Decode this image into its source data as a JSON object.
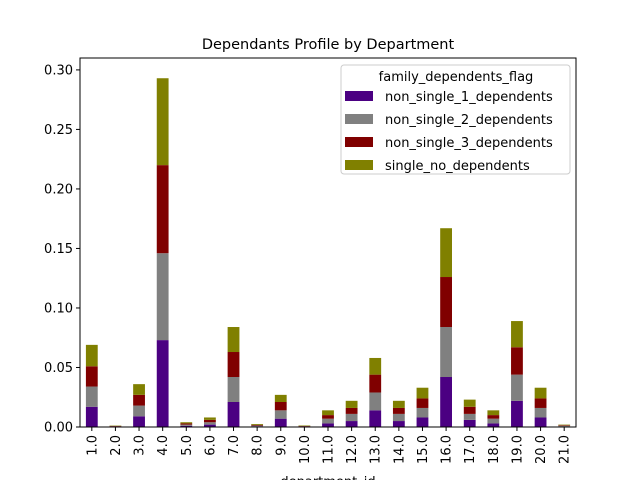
{
  "chart_data": {
    "type": "bar",
    "stacked": true,
    "title": "Dependants Profile by Department",
    "xlabel": "department_id",
    "ylabel": "",
    "ylim": [
      0,
      0.31
    ],
    "yticks": [
      "0.00",
      "0.05",
      "0.10",
      "0.15",
      "0.20",
      "0.25",
      "0.30"
    ],
    "grid": false,
    "legend_position": "top-right",
    "legend_title": "family_dependents_flag",
    "categories": [
      "1.0",
      "2.0",
      "3.0",
      "4.0",
      "5.0",
      "6.0",
      "7.0",
      "8.0",
      "9.0",
      "10.0",
      "11.0",
      "12.0",
      "13.0",
      "14.0",
      "15.0",
      "16.0",
      "17.0",
      "18.0",
      "19.0",
      "20.0",
      "21.0"
    ],
    "series": [
      {
        "name": "non_single_1_dependents",
        "color": "#4b0082",
        "values": [
          0.017,
          0.0003,
          0.009,
          0.073,
          0.001,
          0.002,
          0.021,
          0.0006,
          0.007,
          0.0003,
          0.003,
          0.005,
          0.014,
          0.005,
          0.008,
          0.042,
          0.006,
          0.003,
          0.022,
          0.008,
          0.0005
        ]
      },
      {
        "name": "non_single_2_dependents",
        "color": "#808080",
        "values": [
          0.017,
          0.0003,
          0.009,
          0.073,
          0.001,
          0.002,
          0.021,
          0.0006,
          0.007,
          0.0003,
          0.004,
          0.006,
          0.015,
          0.006,
          0.008,
          0.042,
          0.005,
          0.004,
          0.022,
          0.008,
          0.0005
        ]
      },
      {
        "name": "non_single_3_dependents",
        "color": "#800000",
        "values": [
          0.017,
          0.0003,
          0.009,
          0.074,
          0.001,
          0.002,
          0.021,
          0.0006,
          0.007,
          0.0003,
          0.003,
          0.005,
          0.015,
          0.005,
          0.008,
          0.042,
          0.006,
          0.003,
          0.023,
          0.008,
          0.0005
        ]
      },
      {
        "name": "single_no_dependents",
        "color": "#808000",
        "values": [
          0.018,
          0.0003,
          0.009,
          0.073,
          0.001,
          0.002,
          0.021,
          0.0007,
          0.006,
          0.0004,
          0.004,
          0.006,
          0.014,
          0.006,
          0.009,
          0.041,
          0.006,
          0.004,
          0.022,
          0.009,
          0.0005
        ]
      }
    ]
  }
}
